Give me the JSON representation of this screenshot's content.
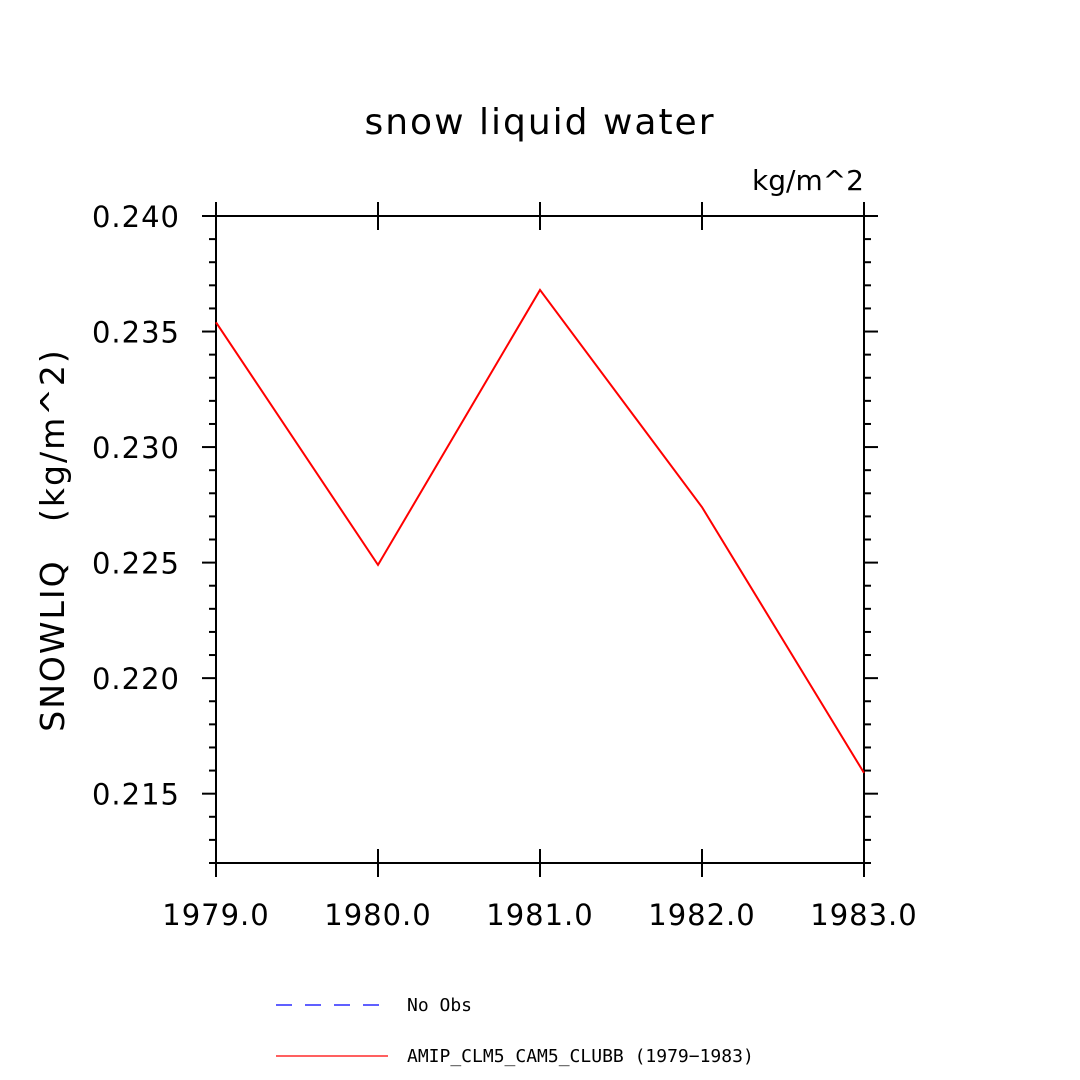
{
  "chart_data": {
    "type": "line",
    "title": "snow liquid water",
    "units": "kg/m^2",
    "xlabel": "",
    "ylabel": "SNOWLIQ   (kg/m^2)",
    "xlim": [
      1979.0,
      1983.0
    ],
    "ylim": [
      0.212,
      0.24
    ],
    "x_ticks": [
      1979.0,
      1980.0,
      1981.0,
      1982.0,
      1983.0
    ],
    "x_tick_labels": [
      "1979.0",
      "1980.0",
      "1981.0",
      "1982.0",
      "1983.0"
    ],
    "y_ticks": [
      0.215,
      0.22,
      0.225,
      0.23,
      0.235,
      0.24
    ],
    "y_tick_labels": [
      "0.215",
      "0.220",
      "0.225",
      "0.230",
      "0.235",
      "0.240"
    ],
    "y_minor_step": 0.001,
    "grid": false,
    "legend_position": "bottom",
    "series": [
      {
        "name": "AMIP_CLM5_CAM5_CLUBB (1979-1983)",
        "color": "#ff0000",
        "dash": "solid",
        "x": [
          1979.0,
          1980.0,
          1981.0,
          1982.0,
          1983.0
        ],
        "y": [
          0.2354,
          0.2249,
          0.2368,
          0.2274,
          0.2159
        ]
      }
    ],
    "legend": [
      {
        "label": "No Obs",
        "color": "#0000ff",
        "dash": "dashed"
      },
      {
        "label": "AMIP_CLM5_CAM5_CLUBB (1979−1983)",
        "color": "#ff0000",
        "dash": "solid"
      }
    ]
  }
}
